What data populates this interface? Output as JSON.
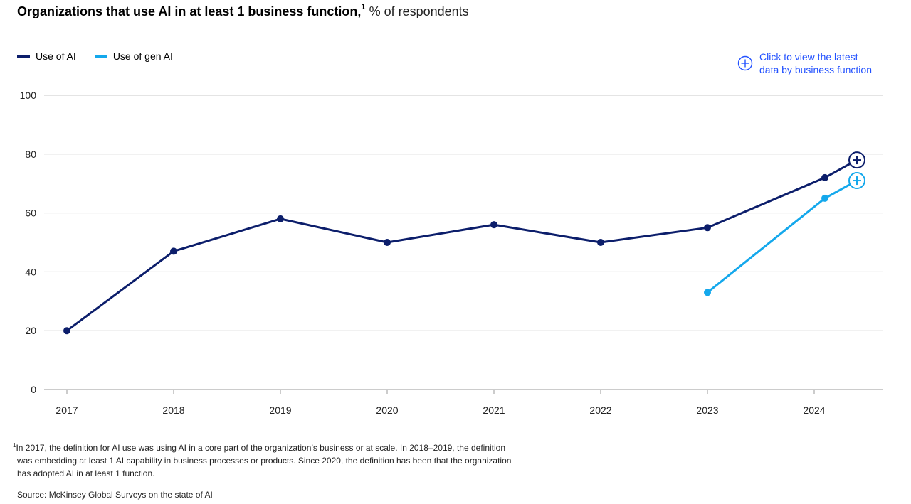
{
  "title": {
    "main": "Organizations that use AI in at least 1 business function,",
    "footnote_mark": "1",
    "unit": "% of respondents"
  },
  "legend": [
    {
      "label": "Use of AI",
      "color": "#0c1e6b"
    },
    {
      "label": "Use of gen AI",
      "color": "#14a8ec"
    }
  ],
  "cta": {
    "label_line1": "Click to view the latest",
    "label_line2": "data by business function",
    "icon": "plus-circle-icon",
    "color": "#2251ff"
  },
  "chart_data": {
    "type": "line",
    "x": [
      "2017",
      "2018",
      "2019",
      "2020",
      "2021",
      "2022",
      "2023",
      "2024"
    ],
    "ylim": [
      0,
      100
    ],
    "yticks": [
      0,
      20,
      40,
      60,
      80,
      100
    ],
    "grid": true,
    "legend_position": "top-left",
    "series": [
      {
        "name": "Use of AI",
        "color": "#0c1e6b",
        "points": [
          {
            "x": 2017.0,
            "y": 20
          },
          {
            "x": 2018.0,
            "y": 47
          },
          {
            "x": 2019.0,
            "y": 58
          },
          {
            "x": 2020.0,
            "y": 50
          },
          {
            "x": 2021.0,
            "y": 56
          },
          {
            "x": 2022.0,
            "y": 50
          },
          {
            "x": 2023.0,
            "y": 55
          },
          {
            "x": 2024.1,
            "y": 72
          },
          {
            "x": 2024.4,
            "y": 78,
            "marker": "plus-circle"
          }
        ]
      },
      {
        "name": "Use of gen AI",
        "color": "#14a8ec",
        "points": [
          {
            "x": 2023.0,
            "y": 33
          },
          {
            "x": 2024.1,
            "y": 65
          },
          {
            "x": 2024.4,
            "y": 71,
            "marker": "plus-circle"
          }
        ]
      }
    ]
  },
  "footnote": {
    "mark": "1",
    "line1": "In 2017, the definition for AI use was using AI in a core part of the organization’s business or at scale. In 2018–2019, the definition",
    "line2": "was embedding at least 1 AI capability in business processes or products. Since 2020, the definition has been that the organization",
    "line3": "has adopted AI in at least 1 function."
  },
  "source": "Source: McKinsey Global Surveys on the state of AI"
}
